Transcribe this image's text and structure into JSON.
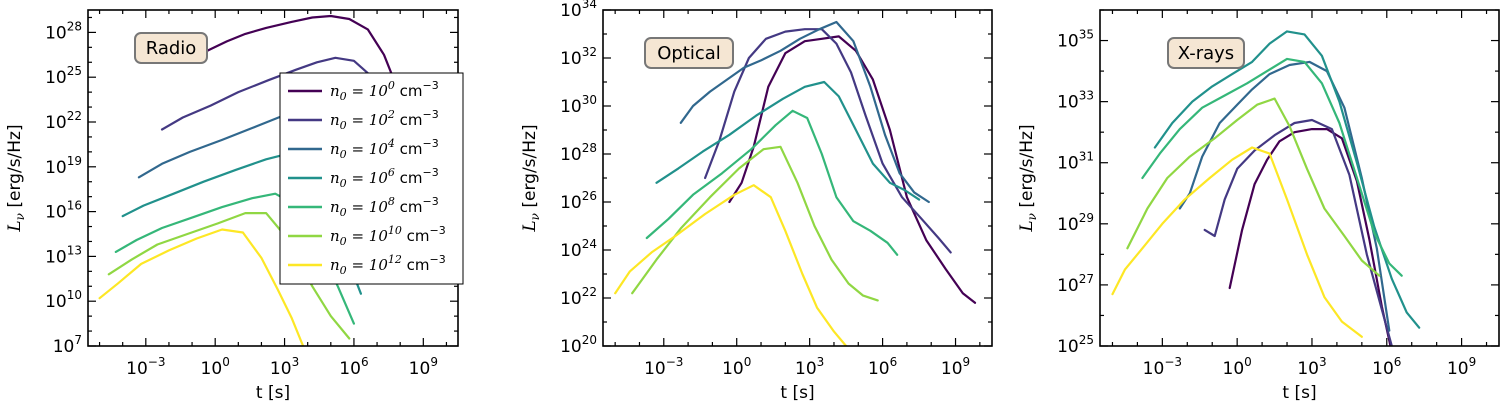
{
  "figure": {
    "y_label": "L_ν [erg/s/Hz]",
    "x_label": "t [s]"
  },
  "legend": [
    {
      "label": "n_0 = 10^0 cm^-3",
      "base": "n",
      "sub": "0",
      "exp": "0",
      "unit": "cm",
      "unit_exp": "−3"
    },
    {
      "label": "n_0 = 10^2 cm^-3",
      "base": "n",
      "sub": "0",
      "exp": "2",
      "unit": "cm",
      "unit_exp": "−3"
    },
    {
      "label": "n_0 = 10^4 cm^-3",
      "base": "n",
      "sub": "0",
      "exp": "4",
      "unit": "cm",
      "unit_exp": "−3"
    },
    {
      "label": "n_0 = 10^6 cm^-3",
      "base": "n",
      "sub": "0",
      "exp": "6",
      "unit": "cm",
      "unit_exp": "−3"
    },
    {
      "label": "n_0 = 10^8 cm^-3",
      "base": "n",
      "sub": "0",
      "exp": "8",
      "unit": "cm",
      "unit_exp": "−3"
    },
    {
      "label": "n_0 = 10^10 cm^-3",
      "base": "n",
      "sub": "0",
      "exp": "10",
      "unit": "cm",
      "unit_exp": "−3"
    },
    {
      "label": "n_0 = 10^12 cm^-3",
      "base": "n",
      "sub": "0",
      "exp": "12",
      "unit": "cm",
      "unit_exp": "−3"
    }
  ],
  "colors": [
    "#440154",
    "#443983",
    "#31688e",
    "#21918c",
    "#35b779",
    "#90d743",
    "#fde725"
  ],
  "chart_data": [
    {
      "type": "line",
      "panel": "Radio",
      "title": "Radio",
      "xlabel": "t [s]",
      "ylabel": "L_ν [erg/s/Hz]",
      "x_scale": "log",
      "y_scale": "log",
      "xlim_log10": [
        -5.5,
        10.5
      ],
      "ylim_log10": [
        7,
        29.5
      ],
      "x_ticks_log10": [
        -3,
        0,
        3,
        6,
        9
      ],
      "y_ticks_log10": [
        7,
        10,
        13,
        16,
        19,
        22,
        25,
        28
      ],
      "legend_position": "center-right",
      "series": [
        {
          "name": "n_0 = 10^0 cm^-3",
          "log_t": [
            -1.3,
            -0.3,
            0.5,
            1.3,
            2.2,
            3.3,
            4.2,
            5.0,
            5.8,
            6.6,
            7.3,
            8.2,
            9.0,
            9.7
          ],
          "log_L": [
            26.2,
            26.8,
            27.4,
            27.9,
            28.3,
            28.7,
            29.0,
            29.1,
            28.9,
            28.2,
            26.5,
            23.0,
            20.0,
            18.0
          ]
        },
        {
          "name": "n_0 = 10^2 cm^-3",
          "log_t": [
            -2.3,
            -1.4,
            -0.2,
            1.0,
            2.3,
            3.5,
            4.4,
            5.2,
            6.0,
            6.8,
            7.5,
            8.2
          ],
          "log_L": [
            21.5,
            22.3,
            23.1,
            24.0,
            24.8,
            25.5,
            26.0,
            26.3,
            26.1,
            25.0,
            22.0,
            19.0
          ]
        },
        {
          "name": "n_0 = 10^4 cm^-3",
          "log_t": [
            -3.3,
            -2.3,
            -1.1,
            0.3,
            1.6,
            2.9,
            4.0,
            4.9,
            5.6,
            6.2,
            6.9
          ],
          "log_L": [
            18.3,
            19.2,
            20.0,
            20.8,
            21.6,
            22.4,
            22.8,
            22.6,
            21.5,
            19.5,
            17.0
          ]
        },
        {
          "name": "n_0 = 10^6 cm^-3",
          "log_t": [
            -4.0,
            -3.1,
            -1.8,
            -0.5,
            0.9,
            2.2,
            3.2,
            4.0,
            4.6,
            5.2,
            5.8,
            6.3
          ],
          "log_L": [
            15.7,
            16.4,
            17.2,
            18.0,
            18.8,
            19.5,
            19.9,
            19.2,
            17.5,
            15.0,
            12.5,
            10.5
          ]
        },
        {
          "name": "n_0 = 10^8 cm^-3",
          "log_t": [
            -4.3,
            -3.4,
            -2.3,
            -1.0,
            0.3,
            1.6,
            2.6,
            3.3,
            3.9,
            4.6,
            5.3,
            6.0
          ],
          "log_L": [
            13.3,
            14.1,
            14.9,
            15.6,
            16.3,
            16.9,
            17.2,
            16.6,
            15.2,
            13.2,
            11.0,
            8.5
          ]
        },
        {
          "name": "n_0 = 10^10 cm^-3",
          "log_t": [
            -4.6,
            -3.6,
            -2.5,
            -1.2,
            0.1,
            1.3,
            2.2,
            2.9,
            3.5,
            4.2,
            5.0,
            5.8
          ],
          "log_L": [
            11.8,
            12.8,
            13.8,
            14.5,
            15.2,
            15.9,
            15.9,
            14.6,
            13.0,
            11.0,
            9.0,
            7.5
          ]
        },
        {
          "name": "n_0 = 10^12 cm^-3",
          "log_t": [
            -5.0,
            -4.2,
            -3.2,
            -2.0,
            -0.8,
            0.3,
            1.2,
            2.0,
            2.7,
            3.3,
            3.8
          ],
          "log_L": [
            10.2,
            11.2,
            12.5,
            13.4,
            14.2,
            14.8,
            14.6,
            12.9,
            10.8,
            8.9,
            7.0
          ]
        }
      ]
    },
    {
      "type": "line",
      "panel": "Optical",
      "title": "Optical",
      "xlabel": "t [s]",
      "ylabel": "L_ν [erg/s/Hz]",
      "x_scale": "log",
      "y_scale": "log",
      "xlim_log10": [
        -5.5,
        10.5
      ],
      "ylim_log10": [
        20,
        34
      ],
      "x_ticks_log10": [
        -3,
        0,
        3,
        6,
        9
      ],
      "y_ticks_log10": [
        20,
        22,
        24,
        26,
        28,
        30,
        32,
        34
      ],
      "legend_position": "none",
      "series": [
        {
          "name": "n_0 = 10^0 cm^-3",
          "log_t": [
            -0.3,
            0.2,
            0.7,
            1.3,
            2.0,
            2.8,
            3.5,
            4.2,
            4.9,
            5.6,
            6.3,
            7.0,
            7.8,
            8.6,
            9.3,
            9.8
          ],
          "log_L": [
            26.0,
            26.8,
            28.3,
            30.8,
            32.2,
            32.7,
            32.8,
            32.9,
            32.3,
            31.1,
            29.0,
            26.2,
            24.4,
            23.2,
            22.2,
            21.8
          ]
        },
        {
          "name": "n_0 = 10^2 cm^-3",
          "log_t": [
            -1.3,
            -0.7,
            -0.1,
            0.5,
            1.2,
            2.0,
            2.8,
            3.5,
            4.1,
            4.7,
            5.3,
            6.0,
            6.8,
            7.6,
            8.3,
            8.8
          ],
          "log_L": [
            27.0,
            28.6,
            30.6,
            32.0,
            32.8,
            33.1,
            33.2,
            33.2,
            32.6,
            31.4,
            29.6,
            27.6,
            26.2,
            25.3,
            24.5,
            23.9
          ]
        },
        {
          "name": "n_0 = 10^4 cm^-3",
          "log_t": [
            -2.3,
            -1.8,
            -1.1,
            -0.4,
            0.3,
            1.0,
            1.8,
            2.6,
            3.4,
            4.1,
            4.8,
            5.5,
            6.1,
            6.7,
            7.3,
            7.9
          ],
          "log_L": [
            29.3,
            30.0,
            30.6,
            31.1,
            31.6,
            31.9,
            32.3,
            32.8,
            33.2,
            33.5,
            32.7,
            30.8,
            28.8,
            27.2,
            26.4,
            26.0
          ]
        },
        {
          "name": "n_0 = 10^6 cm^-3",
          "log_t": [
            -3.3,
            -2.4,
            -1.4,
            -0.3,
            0.8,
            1.9,
            2.8,
            3.6,
            4.2,
            4.9,
            5.6,
            6.3,
            6.9,
            7.5
          ],
          "log_L": [
            26.8,
            27.4,
            28.1,
            28.8,
            29.6,
            30.3,
            30.8,
            31.0,
            30.4,
            29.0,
            27.6,
            26.8,
            26.5,
            26.1
          ]
        },
        {
          "name": "n_0 = 10^8 cm^-3",
          "log_t": [
            -3.7,
            -2.8,
            -1.8,
            -0.6,
            0.6,
            1.6,
            2.3,
            2.9,
            3.5,
            4.1,
            4.8,
            5.5,
            6.2,
            6.6
          ],
          "log_L": [
            24.5,
            25.3,
            26.3,
            27.2,
            28.2,
            29.2,
            29.8,
            29.5,
            28.0,
            26.2,
            25.2,
            24.8,
            24.3,
            23.8
          ]
        },
        {
          "name": "n_0 = 10^10 cm^-3",
          "log_t": [
            -4.3,
            -3.3,
            -2.3,
            -1.1,
            0.1,
            1.1,
            1.8,
            2.5,
            3.2,
            3.9,
            4.6,
            5.2,
            5.8
          ],
          "log_L": [
            22.2,
            23.6,
            24.9,
            26.2,
            27.4,
            28.2,
            28.3,
            26.8,
            25.0,
            23.6,
            22.6,
            22.1,
            21.9
          ]
        },
        {
          "name": "n_0 = 10^12 cm^-3",
          "log_t": [
            -5.0,
            -4.4,
            -3.5,
            -2.5,
            -1.3,
            -0.1,
            0.7,
            1.4,
            2.0,
            2.7,
            3.3,
            4.0,
            4.5
          ],
          "log_L": [
            22.2,
            23.1,
            23.9,
            24.6,
            25.5,
            26.3,
            26.7,
            26.2,
            24.8,
            23.0,
            21.6,
            20.6,
            20.0
          ]
        }
      ]
    },
    {
      "type": "line",
      "panel": "X-rays",
      "title": "X-rays",
      "xlabel": "t [s]",
      "ylabel": "L_ν [erg/s/Hz]",
      "x_scale": "log",
      "y_scale": "log",
      "xlim_log10": [
        -5.5,
        10.5
      ],
      "ylim_log10": [
        25,
        36
      ],
      "x_ticks_log10": [
        -3,
        0,
        3,
        6,
        9
      ],
      "y_ticks_log10": [
        25,
        27,
        29,
        31,
        33,
        35
      ],
      "legend_position": "none",
      "series": [
        {
          "name": "n_0 = 10^0 cm^-3",
          "log_t": [
            -0.3,
            0.2,
            0.7,
            1.2,
            1.7,
            2.3,
            3.0,
            3.6,
            4.2,
            4.8,
            5.3,
            5.8,
            6.2
          ],
          "log_L": [
            26.9,
            28.8,
            30.3,
            31.1,
            31.7,
            32.0,
            32.1,
            32.1,
            31.8,
            30.4,
            28.5,
            26.3,
            24.8
          ]
        },
        {
          "name": "n_0 = 10^2 cm^-3",
          "log_t": [
            -1.3,
            -0.9,
            -0.5,
            0.0,
            0.7,
            1.5,
            2.3,
            3.0,
            3.8,
            4.5,
            5.2,
            5.7,
            6.2
          ],
          "log_L": [
            28.8,
            28.6,
            29.8,
            30.8,
            31.4,
            31.9,
            32.3,
            32.4,
            32.1,
            30.6,
            28.0,
            26.5,
            25.0
          ]
        },
        {
          "name": "n_0 = 10^4 cm^-3",
          "log_t": [
            -2.3,
            -1.9,
            -1.4,
            -0.7,
            0.0,
            0.6,
            1.3,
            2.1,
            2.9,
            3.6,
            4.3,
            5.0,
            5.6,
            6.1
          ],
          "log_L": [
            29.5,
            30.0,
            31.2,
            32.3,
            32.9,
            33.4,
            33.9,
            34.2,
            34.3,
            34.0,
            32.8,
            30.5,
            28.2,
            25.5
          ]
        },
        {
          "name": "n_0 = 10^6 cm^-3",
          "log_t": [
            -3.3,
            -2.6,
            -1.8,
            -1.0,
            -0.2,
            0.6,
            1.3,
            2.0,
            2.7,
            3.4,
            4.1,
            4.8,
            5.5,
            6.2,
            6.8,
            7.3
          ],
          "log_L": [
            31.5,
            32.3,
            33.0,
            33.5,
            33.9,
            34.3,
            34.9,
            35.3,
            35.2,
            34.5,
            33.0,
            31.0,
            28.9,
            27.2,
            26.1,
            25.6
          ]
        },
        {
          "name": "n_0 = 10^8 cm^-3",
          "log_t": [
            -3.8,
            -3.1,
            -2.3,
            -1.4,
            -0.5,
            0.4,
            1.2,
            2.0,
            2.7,
            3.4,
            4.1,
            4.8,
            5.5,
            6.1,
            6.6
          ],
          "log_L": [
            30.5,
            31.3,
            32.1,
            32.8,
            33.2,
            33.6,
            34.0,
            34.4,
            34.3,
            33.6,
            32.3,
            30.5,
            28.7,
            27.7,
            27.3
          ]
        },
        {
          "name": "n_0 = 10^10 cm^-3",
          "log_t": [
            -4.4,
            -3.6,
            -2.8,
            -1.9,
            -0.9,
            0.0,
            0.8,
            1.5,
            2.1,
            2.8,
            3.5,
            4.3,
            5.0,
            5.7
          ],
          "log_L": [
            28.2,
            29.5,
            30.5,
            31.2,
            31.8,
            32.4,
            32.9,
            33.1,
            32.2,
            30.8,
            29.5,
            28.6,
            27.8,
            27.3
          ]
        },
        {
          "name": "n_0 = 10^12 cm^-3",
          "log_t": [
            -5.0,
            -4.5,
            -3.8,
            -3.0,
            -2.1,
            -1.1,
            -0.2,
            0.6,
            1.3,
            2.0,
            2.8,
            3.5,
            4.2,
            5.0
          ],
          "log_L": [
            26.7,
            27.5,
            28.2,
            29.0,
            29.8,
            30.5,
            31.1,
            31.5,
            31.3,
            29.8,
            28.0,
            26.6,
            25.8,
            25.3
          ]
        }
      ]
    }
  ]
}
